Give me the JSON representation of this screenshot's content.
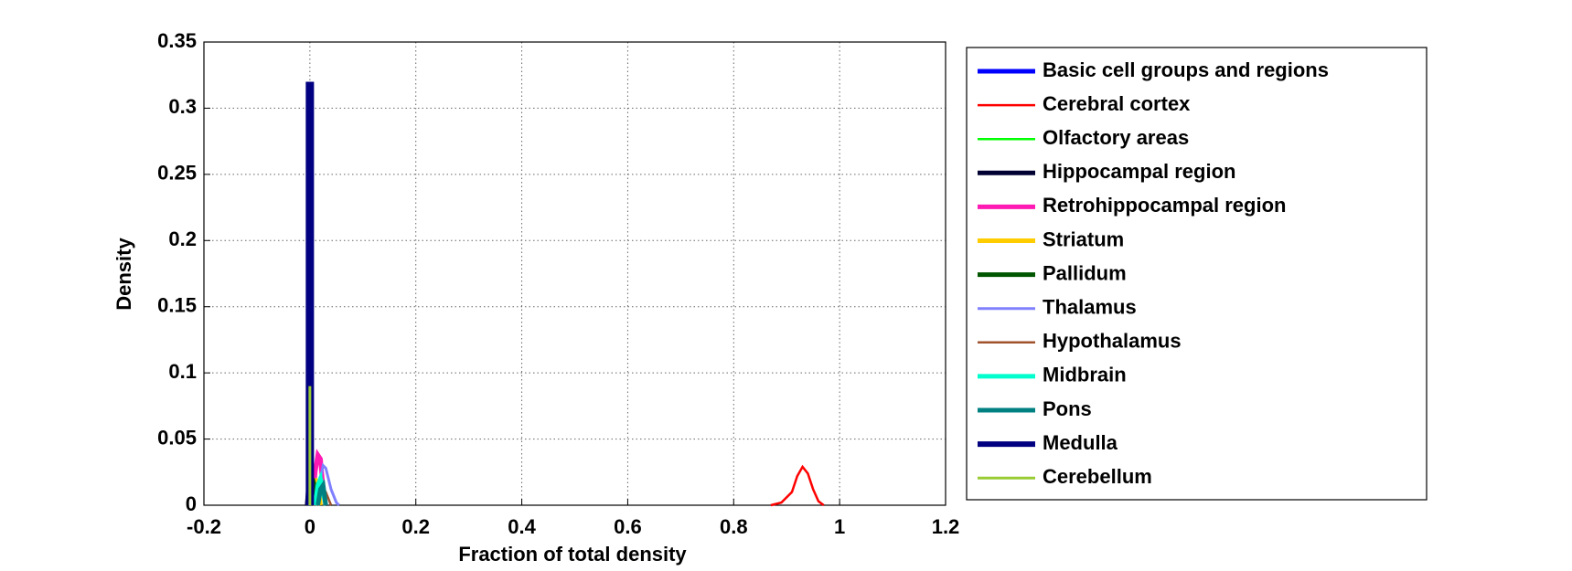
{
  "chart_data": {
    "type": "line",
    "xlabel": "Fraction of total density",
    "ylabel": "Density",
    "xlim": [
      -0.2,
      1.2
    ],
    "ylim": [
      0,
      0.35
    ],
    "xticks": [
      -0.2,
      0,
      0.2,
      0.4,
      0.6,
      0.8,
      1,
      1.2
    ],
    "yticks": [
      0,
      0.05,
      0.1,
      0.15,
      0.2,
      0.25,
      0.3,
      0.35
    ],
    "grid": true,
    "legend": "outside right",
    "series": [
      {
        "name": "Basic cell groups and regions",
        "color": "#0000ff",
        "width": 5,
        "x": [
          -0.005,
          0,
          0.005,
          0.01,
          0.015
        ],
        "values": [
          0,
          0.02,
          0.025,
          0.01,
          0
        ]
      },
      {
        "name": "Cerebral cortex",
        "color": "#ff0000",
        "width": 2.5,
        "x": [
          0.87,
          0.89,
          0.91,
          0.92,
          0.93,
          0.94,
          0.95,
          0.96,
          0.97
        ],
        "values": [
          0,
          0.002,
          0.01,
          0.022,
          0.029,
          0.024,
          0.012,
          0.003,
          0
        ]
      },
      {
        "name": "Olfactory areas",
        "color": "#00ff00",
        "width": 2.5,
        "x": [
          0,
          0.005,
          0.01,
          0.015,
          0.02
        ],
        "values": [
          0,
          0.015,
          0.02,
          0.008,
          0
        ]
      },
      {
        "name": "Hippocampal region",
        "color": "#000033",
        "width": 5,
        "x": [
          -0.005,
          0,
          0.005
        ],
        "values": [
          0,
          0.03,
          0
        ]
      },
      {
        "name": "Retrohippocampal region",
        "color": "#ff1ab3",
        "width": 5,
        "x": [
          0.005,
          0.01,
          0.015,
          0.02,
          0.025,
          0.03
        ],
        "values": [
          0,
          0.025,
          0.038,
          0.035,
          0.012,
          0
        ]
      },
      {
        "name": "Striatum",
        "color": "#ffcc00",
        "width": 5,
        "x": [
          0.005,
          0.01,
          0.015,
          0.02
        ],
        "values": [
          0,
          0.02,
          0.015,
          0
        ]
      },
      {
        "name": "Pallidum",
        "color": "#005500",
        "width": 5,
        "x": [
          0,
          0.005,
          0.01,
          0.015
        ],
        "values": [
          0,
          0.02,
          0.012,
          0
        ]
      },
      {
        "name": "Thalamus",
        "color": "#8080ff",
        "width": 3,
        "x": [
          0.01,
          0.02,
          0.025,
          0.03,
          0.04,
          0.05,
          0.055
        ],
        "values": [
          0,
          0.02,
          0.03,
          0.028,
          0.012,
          0.002,
          0
        ]
      },
      {
        "name": "Hypothalamus",
        "color": "#a0522d",
        "width": 2.5,
        "x": [
          0.01,
          0.02,
          0.03,
          0.04
        ],
        "values": [
          0,
          0.015,
          0.01,
          0
        ]
      },
      {
        "name": "Midbrain",
        "color": "#00ffcc",
        "width": 5,
        "x": [
          0.01,
          0.015,
          0.02,
          0.025,
          0.03
        ],
        "values": [
          0,
          0.015,
          0.02,
          0.01,
          0
        ]
      },
      {
        "name": "Pons",
        "color": "#008080",
        "width": 5,
        "x": [
          0.015,
          0.02,
          0.025,
          0.03
        ],
        "values": [
          0,
          0.012,
          0.015,
          0
        ]
      },
      {
        "name": "Medulla",
        "color": "#000080",
        "width": 9,
        "x": [
          0,
          0
        ],
        "values": [
          0,
          0.32
        ]
      },
      {
        "name": "Cerebellum",
        "color": "#99cc33",
        "width": 3,
        "x": [
          0,
          0
        ],
        "values": [
          0,
          0.09
        ]
      }
    ]
  }
}
